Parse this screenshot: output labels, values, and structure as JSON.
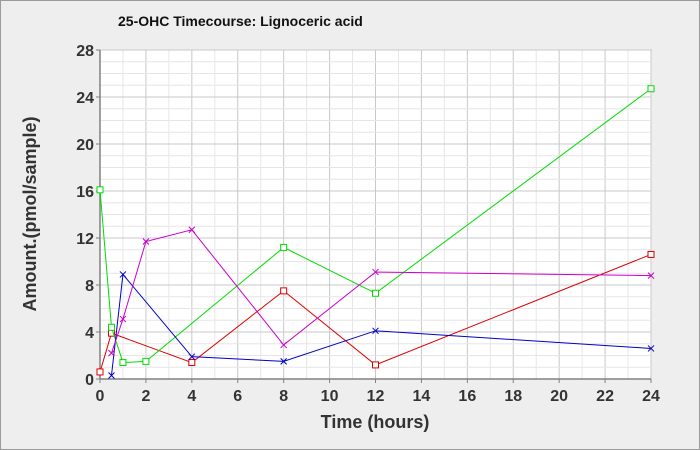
{
  "chart_data": {
    "type": "line",
    "title": "25-OHC Timecourse: Lignoceric acid",
    "xlabel": "Time (hours)",
    "ylabel": "Amount.(pmol/sample)",
    "xlim": [
      0,
      24
    ],
    "ylim": [
      0,
      28
    ],
    "x_ticks": [
      0,
      2,
      4,
      6,
      8,
      10,
      12,
      14,
      16,
      18,
      20,
      22,
      24
    ],
    "y_ticks": [
      0,
      4,
      8,
      12,
      16,
      20,
      24,
      28
    ],
    "grid": true,
    "series": [
      {
        "color": "#dd0000",
        "marker": "square",
        "x": [
          0,
          0.5,
          4,
          8,
          12,
          24
        ],
        "y": [
          0.6,
          3.9,
          1.4,
          7.5,
          1.2,
          10.6
        ]
      },
      {
        "color": "#00dd00",
        "marker": "square",
        "x": [
          0,
          0.5,
          1,
          2,
          8,
          12,
          24
        ],
        "y": [
          16.1,
          4.4,
          1.4,
          1.5,
          11.2,
          7.3,
          24.7
        ]
      },
      {
        "color": "#0000cc",
        "marker": "x",
        "x": [
          0.5,
          1,
          4,
          8,
          12,
          24
        ],
        "y": [
          0.3,
          8.9,
          1.9,
          1.5,
          4.1,
          2.6
        ]
      },
      {
        "color": "#cc00cc",
        "marker": "x",
        "x": [
          0.5,
          1,
          2,
          4,
          8,
          12,
          24
        ],
        "y": [
          2.2,
          5.1,
          11.7,
          12.7,
          2.9,
          9.1,
          8.8
        ]
      }
    ]
  }
}
